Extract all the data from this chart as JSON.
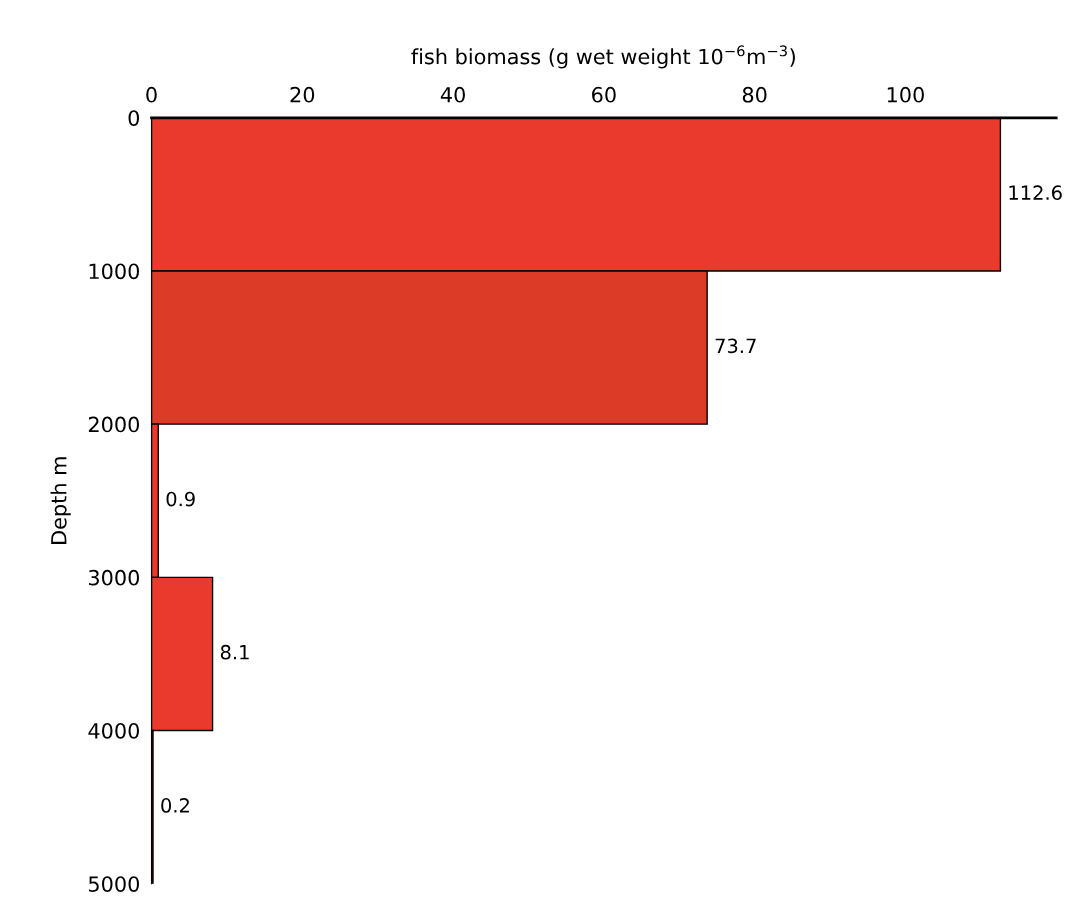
{
  "chart_data": {
    "type": "histogram",
    "orientation": "horizontal",
    "xlabel": "fish biomass (g wet weight 10$^{−6}$m$^{−3}$)",
    "ylabel": "Depth m",
    "bins": [
      0,
      1000,
      2000,
      3000,
      4000,
      5000
    ],
    "values": [
      112.6,
      73.7,
      0.9,
      8.1,
      0.2
    ],
    "colors": [
      "#e93a2d",
      "#dc3b27",
      "#e93a2d",
      "#e93a2d",
      "#e93a2d"
    ],
    "xlim": [
      0,
      120
    ],
    "xticks": [
      0,
      20,
      40,
      60,
      80,
      100
    ],
    "ylim": [
      5000,
      0
    ],
    "yticks": [
      0,
      1000,
      2000,
      3000,
      4000,
      5000
    ],
    "data_labels": true,
    "grid": false,
    "legend": false
  }
}
